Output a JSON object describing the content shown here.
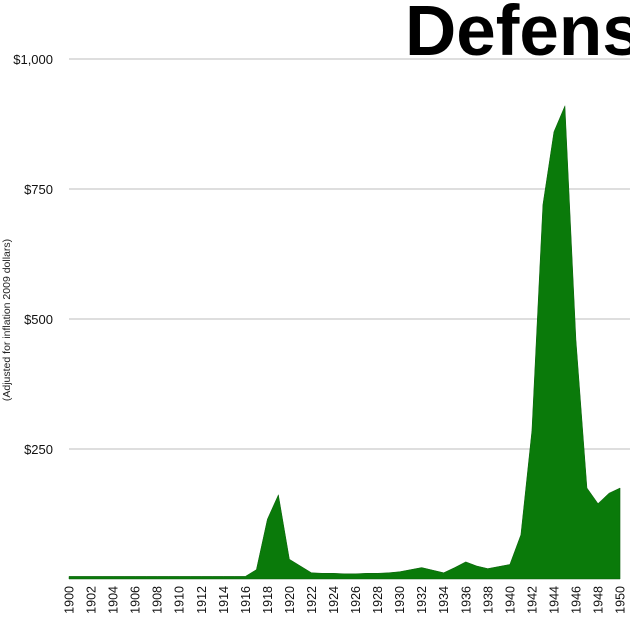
{
  "chart_data": {
    "type": "area",
    "title": "Defens",
    "ylabel": "(Adjusted for inflation 2009 dollars)",
    "xlabel": "",
    "y_ticks": [
      {
        "value": 1000,
        "label": "$1,000"
      },
      {
        "value": 750,
        "label": "$750"
      },
      {
        "value": 500,
        "label": "$500"
      },
      {
        "value": 250,
        "label": "$250"
      }
    ],
    "x_ticks": [
      "1900",
      "1902",
      "1904",
      "1906",
      "1908",
      "1910",
      "1912",
      "1914",
      "1916",
      "1918",
      "1920",
      "1922",
      "1924",
      "1926",
      "1928",
      "1930",
      "1932",
      "1934",
      "1936",
      "1938",
      "1940",
      "1942",
      "1944",
      "1946",
      "1948",
      "1950"
    ],
    "ylim": [
      0,
      1000
    ],
    "xlim": [
      1900,
      1950
    ],
    "grid": true,
    "color": "#0a7a0a",
    "x": [
      1900,
      1901,
      1902,
      1903,
      1904,
      1905,
      1906,
      1907,
      1908,
      1909,
      1910,
      1911,
      1912,
      1913,
      1914,
      1915,
      1916,
      1917,
      1918,
      1919,
      1920,
      1921,
      1922,
      1923,
      1924,
      1925,
      1926,
      1927,
      1928,
      1929,
      1930,
      1931,
      1932,
      1933,
      1934,
      1935,
      1936,
      1937,
      1938,
      1939,
      1940,
      1941,
      1942,
      1943,
      1944,
      1945,
      1946,
      1947,
      1948,
      1949,
      1950
    ],
    "values": [
      5,
      5,
      5,
      5,
      5,
      5,
      5,
      5,
      5,
      5,
      5,
      5,
      5,
      5,
      5,
      5,
      5,
      18,
      115,
      162,
      38,
      25,
      12,
      11,
      11,
      10,
      10,
      11,
      11,
      12,
      14,
      18,
      22,
      17,
      12,
      22,
      33,
      25,
      20,
      24,
      28,
      85,
      285,
      720,
      860,
      910,
      460,
      175,
      145,
      165,
      175
    ]
  }
}
